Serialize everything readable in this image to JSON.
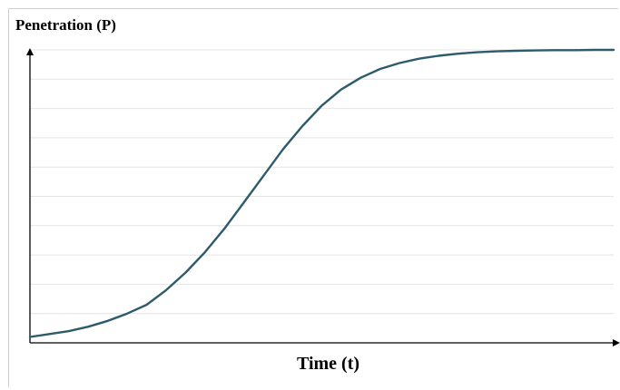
{
  "chart_data": {
    "type": "line",
    "title": "",
    "ylabel": "Penetration (P)",
    "xlabel": "Time (t)",
    "grid": true,
    "grid_lines": 10,
    "xlim": [
      0,
      30
    ],
    "ylim": [
      0,
      1
    ],
    "series": [
      {
        "color": "#2e5b6b",
        "x": [
          0,
          1,
          2,
          3,
          4,
          5,
          6,
          7,
          8,
          9,
          10,
          11,
          12,
          13,
          14,
          15,
          16,
          17,
          18,
          19,
          20,
          21,
          22,
          23,
          24,
          25,
          26,
          27,
          28,
          29,
          30
        ],
        "y": [
          0.02,
          0.03,
          0.04,
          0.055,
          0.075,
          0.1,
          0.13,
          0.18,
          0.24,
          0.31,
          0.39,
          0.48,
          0.57,
          0.66,
          0.74,
          0.81,
          0.865,
          0.905,
          0.935,
          0.955,
          0.97,
          0.98,
          0.987,
          0.992,
          0.995,
          0.997,
          0.998,
          0.999,
          0.999,
          1.0,
          1.0
        ]
      }
    ]
  }
}
